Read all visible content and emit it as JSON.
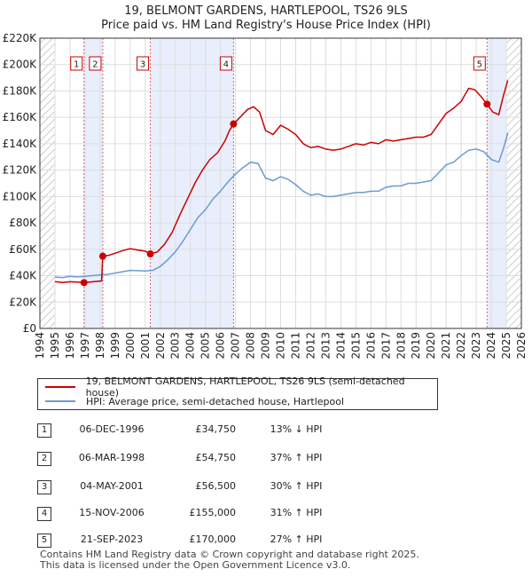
{
  "title_line1": "19, BELMONT GARDENS, HARTLEPOOL, TS26 9LS",
  "title_line2": "Price paid vs. HM Land Registry's House Price Index (HPI)",
  "chart_data": {
    "type": "line",
    "xlim": [
      1994,
      2026
    ],
    "ylim": [
      0,
      220000
    ],
    "x_ticks": [
      "1994",
      "1995",
      "1996",
      "1997",
      "1998",
      "1999",
      "2000",
      "2001",
      "2002",
      "2003",
      "2004",
      "2005",
      "2006",
      "2007",
      "2008",
      "2009",
      "2010",
      "2011",
      "2012",
      "2013",
      "2014",
      "2015",
      "2016",
      "2017",
      "2018",
      "2019",
      "2020",
      "2021",
      "2022",
      "2023",
      "2024",
      "2025",
      "2026"
    ],
    "y_ticks": [
      {
        "value": 0,
        "label": "£0"
      },
      {
        "value": 20000,
        "label": "£20K"
      },
      {
        "value": 40000,
        "label": "£40K"
      },
      {
        "value": 60000,
        "label": "£60K"
      },
      {
        "value": 80000,
        "label": "£80K"
      },
      {
        "value": 100000,
        "label": "£100K"
      },
      {
        "value": 120000,
        "label": "£120K"
      },
      {
        "value": 140000,
        "label": "£140K"
      },
      {
        "value": 160000,
        "label": "£160K"
      },
      {
        "value": 180000,
        "label": "£180K"
      },
      {
        "value": 200000,
        "label": "£200K"
      },
      {
        "value": 220000,
        "label": "£220K"
      }
    ],
    "grid": true,
    "hatched_ranges": [
      [
        1994,
        1995
      ],
      [
        2025,
        2026
      ]
    ],
    "shaded_bands": [
      [
        1996.93,
        1998.18
      ],
      [
        2001.34,
        2006.87
      ],
      [
        2023.72,
        2025
      ]
    ],
    "series": [
      {
        "name": "19, BELMONT GARDENS, HARTLEPOOL, TS26 9LS (semi-detached house)",
        "color": "#cc0000",
        "points": [
          [
            1995.0,
            35500
          ],
          [
            1995.5,
            34800
          ],
          [
            1996.0,
            35400
          ],
          [
            1996.5,
            35100
          ],
          [
            1996.93,
            34750
          ],
          [
            1997.3,
            35200
          ],
          [
            1997.7,
            35600
          ],
          [
            1998.1,
            36000
          ],
          [
            1998.18,
            54750
          ],
          [
            1998.6,
            55500
          ],
          [
            1999.0,
            57000
          ],
          [
            1999.5,
            59000
          ],
          [
            2000.0,
            60500
          ],
          [
            2000.5,
            59500
          ],
          [
            2001.0,
            58500
          ],
          [
            2001.34,
            56500
          ],
          [
            2001.8,
            58000
          ],
          [
            2002.3,
            64000
          ],
          [
            2002.8,
            73000
          ],
          [
            2003.3,
            86000
          ],
          [
            2003.8,
            98000
          ],
          [
            2004.3,
            110000
          ],
          [
            2004.8,
            120000
          ],
          [
            2005.3,
            128000
          ],
          [
            2005.8,
            133000
          ],
          [
            2006.3,
            142000
          ],
          [
            2006.6,
            150000
          ],
          [
            2006.87,
            155000
          ],
          [
            2007.3,
            160000
          ],
          [
            2007.8,
            166000
          ],
          [
            2008.2,
            168000
          ],
          [
            2008.6,
            164000
          ],
          [
            2009.0,
            150000
          ],
          [
            2009.5,
            147000
          ],
          [
            2010.0,
            154000
          ],
          [
            2010.5,
            151000
          ],
          [
            2011.0,
            147000
          ],
          [
            2011.5,
            140000
          ],
          [
            2012.0,
            137000
          ],
          [
            2012.5,
            138000
          ],
          [
            2013.0,
            136000
          ],
          [
            2013.5,
            135000
          ],
          [
            2014.0,
            136000
          ],
          [
            2014.5,
            138000
          ],
          [
            2015.0,
            140000
          ],
          [
            2015.5,
            139000
          ],
          [
            2016.0,
            141000
          ],
          [
            2016.5,
            140000
          ],
          [
            2017.0,
            143000
          ],
          [
            2017.5,
            142000
          ],
          [
            2018.0,
            143000
          ],
          [
            2018.5,
            144000
          ],
          [
            2019.0,
            145000
          ],
          [
            2019.5,
            145000
          ],
          [
            2020.0,
            147000
          ],
          [
            2020.5,
            155000
          ],
          [
            2021.0,
            163000
          ],
          [
            2021.5,
            167000
          ],
          [
            2022.0,
            172000
          ],
          [
            2022.5,
            182000
          ],
          [
            2022.9,
            181000
          ],
          [
            2023.3,
            176000
          ],
          [
            2023.72,
            170000
          ],
          [
            2024.1,
            164000
          ],
          [
            2024.5,
            162000
          ],
          [
            2024.8,
            176000
          ],
          [
            2025.1,
            188000
          ]
        ]
      },
      {
        "name": "HPI: Average price, semi-detached house, Hartlepool",
        "color": "#6b9bd2",
        "points": [
          [
            1995.0,
            39000
          ],
          [
            1995.5,
            38500
          ],
          [
            1996.0,
            39500
          ],
          [
            1996.5,
            39000
          ],
          [
            1997.0,
            39500
          ],
          [
            1997.5,
            40000
          ],
          [
            1998.0,
            40500
          ],
          [
            1998.5,
            41000
          ],
          [
            1999.0,
            42000
          ],
          [
            1999.5,
            43000
          ],
          [
            2000.0,
            44000
          ],
          [
            2000.5,
            43800
          ],
          [
            2001.0,
            43500
          ],
          [
            2001.5,
            44000
          ],
          [
            2002.0,
            47000
          ],
          [
            2002.5,
            52000
          ],
          [
            2003.0,
            58000
          ],
          [
            2003.5,
            66000
          ],
          [
            2004.0,
            75000
          ],
          [
            2004.5,
            84000
          ],
          [
            2005.0,
            90000
          ],
          [
            2005.5,
            98000
          ],
          [
            2006.0,
            104000
          ],
          [
            2006.5,
            111000
          ],
          [
            2007.0,
            117000
          ],
          [
            2007.5,
            122000
          ],
          [
            2008.0,
            126000
          ],
          [
            2008.5,
            125000
          ],
          [
            2009.0,
            114000
          ],
          [
            2009.5,
            112000
          ],
          [
            2010.0,
            115000
          ],
          [
            2010.5,
            113000
          ],
          [
            2011.0,
            109000
          ],
          [
            2011.5,
            104000
          ],
          [
            2012.0,
            101000
          ],
          [
            2012.5,
            102000
          ],
          [
            2013.0,
            100000
          ],
          [
            2013.5,
            100000
          ],
          [
            2014.0,
            101000
          ],
          [
            2014.5,
            102000
          ],
          [
            2015.0,
            103000
          ],
          [
            2015.5,
            103000
          ],
          [
            2016.0,
            104000
          ],
          [
            2016.5,
            104000
          ],
          [
            2017.0,
            107000
          ],
          [
            2017.5,
            108000
          ],
          [
            2018.0,
            108000
          ],
          [
            2018.5,
            110000
          ],
          [
            2019.0,
            110000
          ],
          [
            2019.5,
            111000
          ],
          [
            2020.0,
            112000
          ],
          [
            2020.5,
            118000
          ],
          [
            2021.0,
            124000
          ],
          [
            2021.5,
            126000
          ],
          [
            2022.0,
            131000
          ],
          [
            2022.5,
            135000
          ],
          [
            2023.0,
            136000
          ],
          [
            2023.5,
            134000
          ],
          [
            2024.0,
            128000
          ],
          [
            2024.5,
            126000
          ],
          [
            2024.8,
            136000
          ],
          [
            2025.1,
            148000
          ]
        ]
      }
    ],
    "sales": [
      {
        "label": "1",
        "x": 1996.93,
        "y": 34750
      },
      {
        "label": "2",
        "x": 1998.18,
        "y": 54750
      },
      {
        "label": "3",
        "x": 2001.34,
        "y": 56500
      },
      {
        "label": "4",
        "x": 2006.87,
        "y": 155000
      },
      {
        "label": "5",
        "x": 2023.72,
        "y": 170000
      }
    ]
  },
  "legend": {
    "property": "19, BELMONT GARDENS, HARTLEPOOL, TS26 9LS (semi-detached house)",
    "hpi": "HPI: Average price, semi-detached house, Hartlepool"
  },
  "transactions": [
    {
      "num": "1",
      "date": "06-DEC-1996",
      "price": "£34,750",
      "hpi": "13% ↓ HPI"
    },
    {
      "num": "2",
      "date": "06-MAR-1998",
      "price": "£54,750",
      "hpi": "37% ↑ HPI"
    },
    {
      "num": "3",
      "date": "04-MAY-2001",
      "price": "£56,500",
      "hpi": "30% ↑ HPI"
    },
    {
      "num": "4",
      "date": "15-NOV-2006",
      "price": "£155,000",
      "hpi": "31% ↑ HPI"
    },
    {
      "num": "5",
      "date": "21-SEP-2023",
      "price": "£170,000",
      "hpi": "27% ↑ HPI"
    }
  ],
  "footer": {
    "line1": "Contains HM Land Registry data © Crown copyright and database right 2025.",
    "line2": "This data is licensed under the Open Government Licence v3.0."
  }
}
